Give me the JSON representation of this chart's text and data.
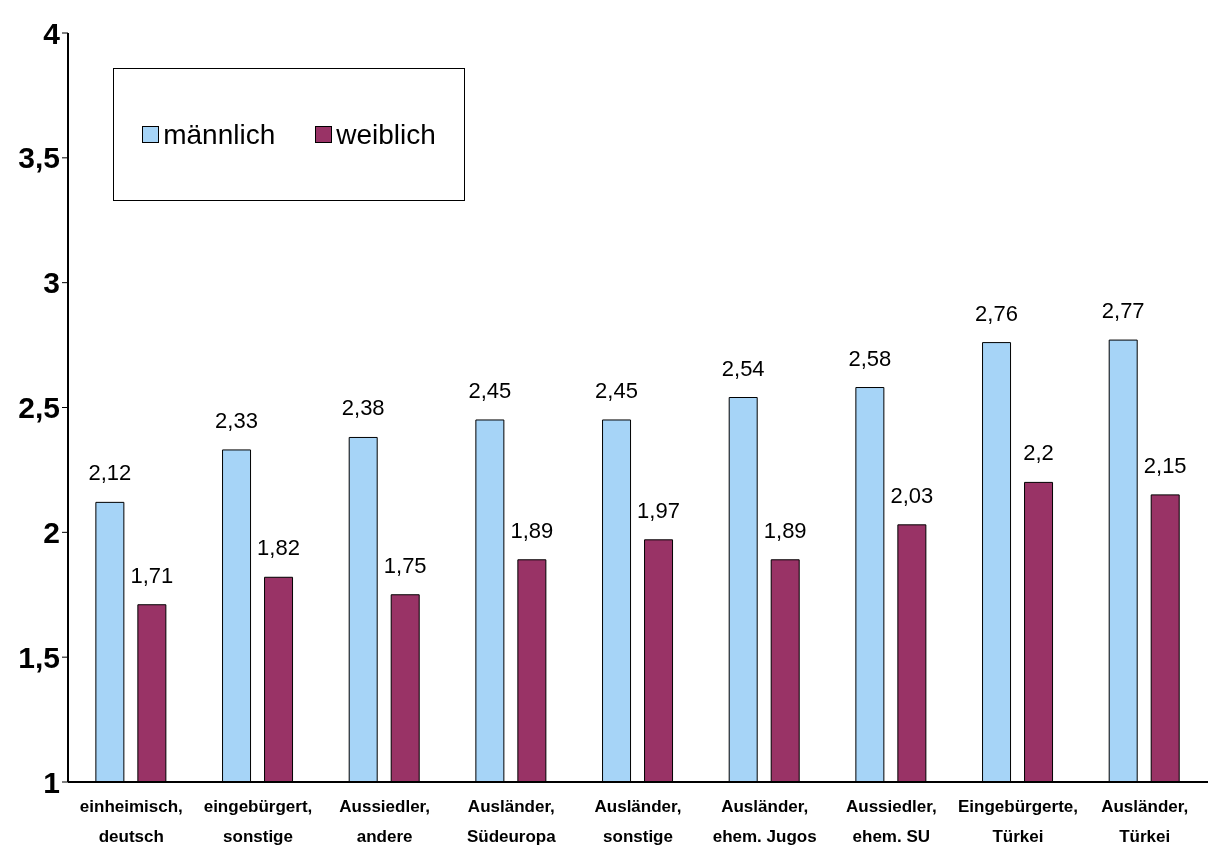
{
  "chart_data": {
    "type": "bar",
    "categories": [
      "einheimisch, deutsch",
      "eingebürgert, sonstige",
      "Aussiedler, andere",
      "Ausländer, Südeuropa",
      "Ausländer, sonstige",
      "Ausländer, ehem. Jugos",
      "Aussiedler, ehem. SU",
      "Eingebürgerte, Türkei",
      "Ausländer, Türkei"
    ],
    "series": [
      {
        "name": "männlich",
        "color": "#a6d4f7",
        "values": [
          2.12,
          2.33,
          2.38,
          2.45,
          2.45,
          2.54,
          2.58,
          2.76,
          2.77
        ],
        "value_labels": [
          "2,12",
          "2,33",
          "2,38",
          "2,45",
          "2,45",
          "2,54",
          "2,58",
          "2,76",
          "2,77"
        ]
      },
      {
        "name": "weiblich",
        "color": "#993366",
        "values": [
          1.71,
          1.82,
          1.75,
          1.89,
          1.97,
          1.89,
          2.03,
          2.2,
          2.15
        ],
        "value_labels": [
          "1,71",
          "1,82",
          "1,75",
          "1,89",
          "1,97",
          "1,89",
          "2,03",
          "2,2",
          "2,15"
        ]
      }
    ],
    "ylim": [
      1,
      4
    ],
    "yticks": [
      1,
      {
        "value": 1.5,
        "label": "1,5"
      },
      2,
      {
        "value": 2.5,
        "label": "2,5"
      },
      3,
      {
        "value": 3.5,
        "label": "3,5"
      },
      4
    ],
    "grid": false,
    "legend": "top left"
  }
}
